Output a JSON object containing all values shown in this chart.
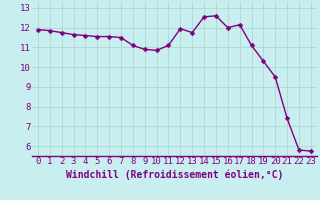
{
  "title": "",
  "xlabel": "Windchill (Refroidissement éolien,°C)",
  "ylabel": "",
  "background_color": "#c8eef0",
  "line_color": "#800080",
  "marker_color": "#800080",
  "grid_color": "#b0d8d0",
  "x_values": [
    0,
    1,
    2,
    3,
    4,
    5,
    6,
    7,
    8,
    9,
    10,
    11,
    12,
    13,
    14,
    15,
    16,
    17,
    18,
    19,
    20,
    21,
    22,
    23
  ],
  "y_values": [
    11.9,
    11.85,
    11.75,
    11.65,
    11.6,
    11.55,
    11.55,
    11.5,
    11.1,
    10.9,
    10.85,
    11.1,
    11.95,
    11.75,
    12.55,
    12.6,
    12.0,
    12.15,
    11.1,
    10.3,
    9.5,
    7.4,
    5.8,
    5.75
  ],
  "ylim": [
    5.5,
    13.3
  ],
  "xlim": [
    -0.5,
    23.5
  ],
  "yticks": [
    6,
    7,
    8,
    9,
    10,
    11,
    12,
    13
  ],
  "xticks": [
    0,
    1,
    2,
    3,
    4,
    5,
    6,
    7,
    8,
    9,
    10,
    11,
    12,
    13,
    14,
    15,
    16,
    17,
    18,
    19,
    20,
    21,
    22,
    23
  ],
  "tick_fontsize": 6.5,
  "xlabel_fontsize": 7,
  "line_width": 1.0,
  "marker_size": 2.5
}
